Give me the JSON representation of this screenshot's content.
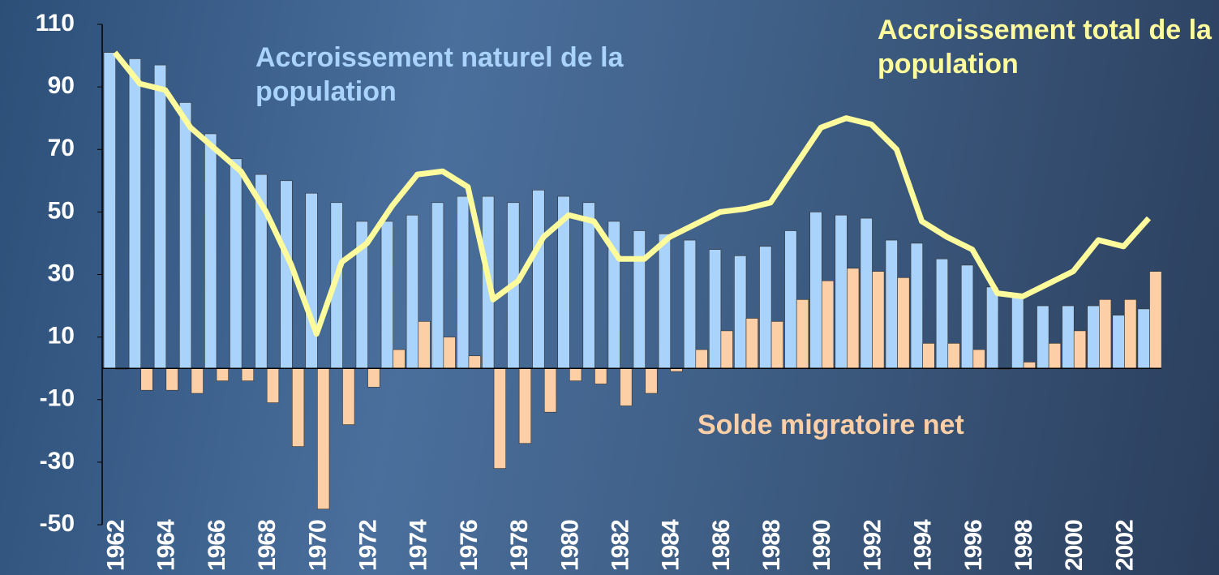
{
  "chart_data": {
    "type": "bar-line",
    "categories": [
      "1962",
      null,
      "1964",
      null,
      "1966",
      null,
      "1968",
      null,
      "1970",
      null,
      "1972",
      null,
      "1974",
      null,
      "1976",
      null,
      "1978",
      null,
      "1980",
      null,
      "1982",
      null,
      "1984",
      null,
      "1986",
      null,
      "1988",
      null,
      "1990",
      null,
      "1992",
      null,
      "1994",
      null,
      "1996",
      null,
      "1998",
      null,
      "2000",
      null,
      "2002",
      null
    ],
    "series": [
      {
        "name": "Accroissement naturel de la population",
        "color": "#a9d3fb",
        "kind": "bar",
        "values": [
          101,
          99,
          97,
          85,
          75,
          67,
          62,
          60,
          56,
          53,
          47,
          47,
          49,
          53,
          55,
          55,
          53,
          57,
          55,
          53,
          47,
          44,
          43,
          41,
          38,
          36,
          39,
          44,
          50,
          49,
          48,
          41,
          40,
          35,
          33,
          26,
          23,
          20,
          20,
          20,
          17,
          19
        ]
      },
      {
        "name": "Solde migratoire net",
        "color": "#fdcfa6",
        "kind": "bar",
        "values": [
          0,
          -7,
          -7,
          -8,
          -4,
          -4,
          -11,
          -25,
          -45,
          -18,
          -6,
          6,
          15,
          10,
          4,
          -32,
          -24,
          -14,
          -4,
          -5,
          -12,
          -8,
          -1,
          6,
          12,
          16,
          15,
          22,
          28,
          32,
          31,
          29,
          8,
          8,
          6,
          0,
          2,
          8,
          12,
          22,
          22,
          31
        ]
      },
      {
        "name": "Accroissement total de la population",
        "color": "#fdfb9c",
        "kind": "line",
        "values": [
          101,
          91,
          89,
          77,
          70,
          63,
          50,
          33,
          11,
          34,
          40,
          52,
          62,
          63,
          58,
          22,
          28,
          42,
          49,
          47,
          35,
          35,
          42,
          46,
          50,
          51,
          53,
          65,
          77,
          80,
          78,
          70,
          47,
          42,
          38,
          24,
          23,
          27,
          31,
          41,
          39,
          48
        ]
      }
    ],
    "ylim": [
      -50,
      110
    ],
    "yticks": [
      -50,
      -30,
      -10,
      10,
      30,
      50,
      70,
      90,
      110
    ]
  }
}
